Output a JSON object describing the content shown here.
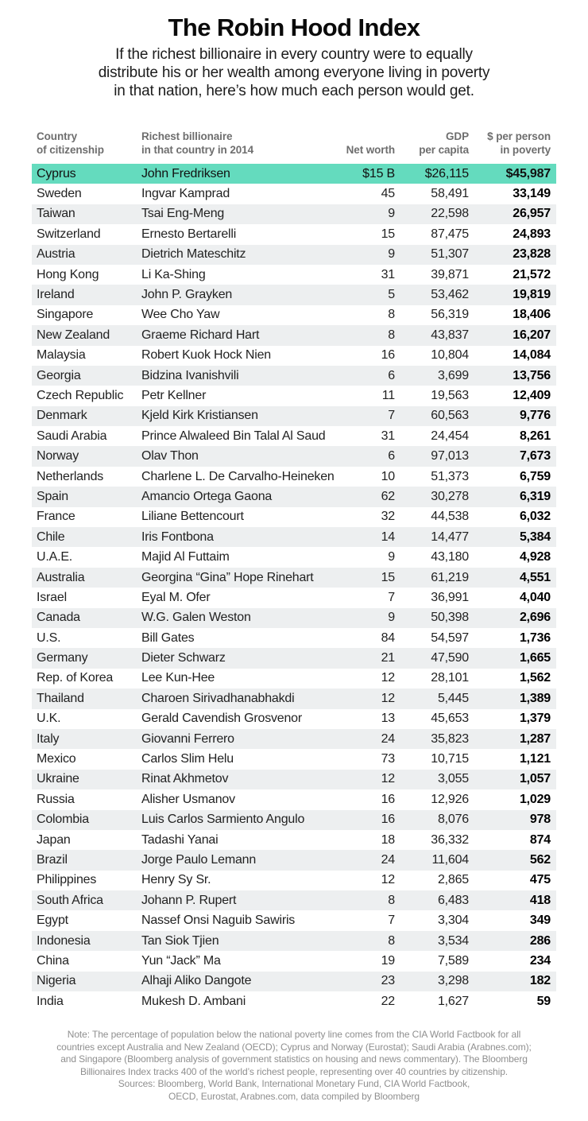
{
  "page": {
    "title": "The Robin Hood Index",
    "subtitle_lines": [
      "If the richest billionaire in every country were to equally",
      "distribute his or her wealth among everyone living in poverty",
      "in that nation, here’s how much each person would get."
    ]
  },
  "colors": {
    "highlight": "#64dbbe",
    "stripe": "#edeff0"
  },
  "chart_data": {
    "type": "table",
    "title": "The Robin Hood Index",
    "columns": [
      {
        "key": "country",
        "align": "left",
        "lines": [
          "Country",
          "of citizenship"
        ]
      },
      {
        "key": "billionaire",
        "align": "left",
        "lines": [
          "Richest billionaire",
          "in that country in 2014"
        ]
      },
      {
        "key": "net-worth",
        "align": "right",
        "lines": [
          "Net worth"
        ]
      },
      {
        "key": "gdp-per-capita",
        "align": "right",
        "lines": [
          "GDP",
          "per capita"
        ]
      },
      {
        "key": "per-person-in-poverty",
        "align": "right",
        "lines": [
          "$ per person",
          "in poverty"
        ]
      }
    ],
    "highlighted_row": "Cyprus",
    "rows": [
      [
        "Cyprus",
        "John Fredriksen",
        "$15 B",
        "$26,115",
        "$45,987"
      ],
      [
        "Sweden",
        "Ingvar Kamprad",
        "45",
        "58,491",
        "33,149"
      ],
      [
        "Taiwan",
        "Tsai Eng-Meng",
        "9",
        "22,598",
        "26,957"
      ],
      [
        "Switzerland",
        "Ernesto Bertarelli",
        "15",
        "87,475",
        "24,893"
      ],
      [
        "Austria",
        "Dietrich Mateschitz",
        "9",
        "51,307",
        "23,828"
      ],
      [
        "Hong Kong",
        "Li Ka-Shing",
        "31",
        "39,871",
        "21,572"
      ],
      [
        "Ireland",
        "John P. Grayken",
        "5",
        "53,462",
        "19,819"
      ],
      [
        "Singapore",
        "Wee Cho Yaw",
        "8",
        "56,319",
        "18,406"
      ],
      [
        "New Zealand",
        "Graeme Richard Hart",
        "8",
        "43,837",
        "16,207"
      ],
      [
        "Malaysia",
        "Robert Kuok Hock Nien",
        "16",
        "10,804",
        "14,084"
      ],
      [
        "Georgia",
        "Bidzina Ivanishvili",
        "6",
        "3,699",
        "13,756"
      ],
      [
        "Czech Republic",
        "Petr Kellner",
        "11",
        "19,563",
        "12,409"
      ],
      [
        "Denmark",
        "Kjeld Kirk Kristiansen",
        "7",
        "60,563",
        "9,776"
      ],
      [
        "Saudi Arabia",
        "Prince Alwaleed Bin Talal Al Saud",
        "31",
        "24,454",
        "8,261"
      ],
      [
        "Norway",
        "Olav Thon",
        "6",
        "97,013",
        "7,673"
      ],
      [
        "Netherlands",
        "Charlene L. De Carvalho-Heineken",
        "10",
        "51,373",
        "6,759"
      ],
      [
        "Spain",
        "Amancio Ortega Gaona",
        "62",
        "30,278",
        "6,319"
      ],
      [
        "France",
        "Liliane Bettencourt",
        "32",
        "44,538",
        "6,032"
      ],
      [
        "Chile",
        "Iris Fontbona",
        "14",
        "14,477",
        "5,384"
      ],
      [
        "U.A.E.",
        "Majid Al Futtaim",
        "9",
        "43,180",
        "4,928"
      ],
      [
        "Australia",
        "Georgina “Gina” Hope Rinehart",
        "15",
        "61,219",
        "4,551"
      ],
      [
        "Israel",
        "Eyal M. Ofer",
        "7",
        "36,991",
        "4,040"
      ],
      [
        "Canada",
        "W.G. Galen Weston",
        "9",
        "50,398",
        "2,696"
      ],
      [
        "U.S.",
        "Bill Gates",
        "84",
        "54,597",
        "1,736"
      ],
      [
        "Germany",
        "Dieter Schwarz",
        "21",
        "47,590",
        "1,665"
      ],
      [
        "Rep. of Korea",
        "Lee Kun-Hee",
        "12",
        "28,101",
        "1,562"
      ],
      [
        "Thailand",
        "Charoen Sirivadhanabhakdi",
        "12",
        "5,445",
        "1,389"
      ],
      [
        "U.K.",
        "Gerald Cavendish Grosvenor",
        "13",
        "45,653",
        "1,379"
      ],
      [
        "Italy",
        "Giovanni Ferrero",
        "24",
        "35,823",
        "1,287"
      ],
      [
        "Mexico",
        "Carlos Slim Helu",
        "73",
        "10,715",
        "1,121"
      ],
      [
        "Ukraine",
        "Rinat Akhmetov",
        "12",
        "3,055",
        "1,057"
      ],
      [
        "Russia",
        "Alisher Usmanov",
        "16",
        "12,926",
        "1,029"
      ],
      [
        "Colombia",
        "Luis Carlos Sarmiento Angulo",
        "16",
        "8,076",
        "978"
      ],
      [
        "Japan",
        "Tadashi Yanai",
        "18",
        "36,332",
        "874"
      ],
      [
        "Brazil",
        "Jorge Paulo Lemann",
        "24",
        "11,604",
        "562"
      ],
      [
        "Philippines",
        "Henry Sy Sr.",
        "12",
        "2,865",
        "475"
      ],
      [
        "South Africa",
        "Johann P. Rupert",
        "8",
        "6,483",
        "418"
      ],
      [
        "Egypt",
        "Nassef Onsi Naguib Sawiris",
        "7",
        "3,304",
        "349"
      ],
      [
        "Indonesia",
        "Tan Siok Tjien",
        "8",
        "3,534",
        "286"
      ],
      [
        "China",
        "Yun “Jack” Ma",
        "19",
        "7,589",
        "234"
      ],
      [
        "Nigeria",
        "Alhaji Aliko Dangote",
        "23",
        "3,298",
        "182"
      ],
      [
        "India",
        "Mukesh D. Ambani",
        "22",
        "1,627",
        "59"
      ]
    ]
  },
  "footer": {
    "note_lines": [
      "Note: The percentage of population below the national poverty line comes from the CIA World Factbook for all",
      "countries except Australia and New Zealand (OECD); Cyprus and Norway (Eurostat); Saudi Arabia (Arabnes.com);",
      "and Singapore (Bloomberg analysis of government statistics on housing and news commentary). The Bloomberg",
      "Billionaires Index tracks 400 of the world’s richest people, representing over 40 countries by citizenship.",
      "Sources: Bloomberg, World Bank, International Monetary Fund, CIA World Factbook,",
      "OECD, Eurostat, Arabnes.com, data compiled by Bloomberg"
    ]
  }
}
